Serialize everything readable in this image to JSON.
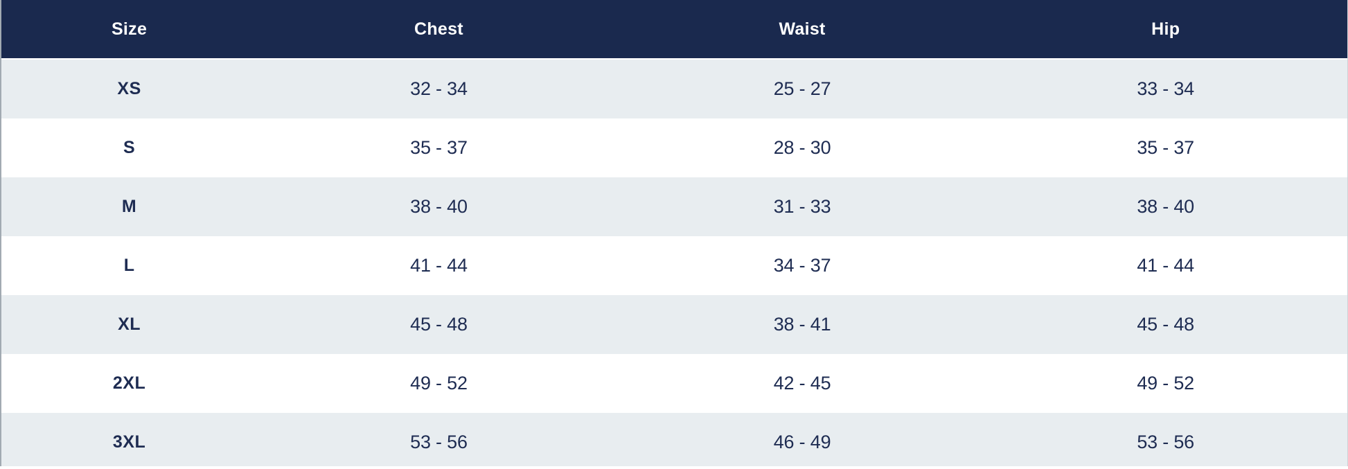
{
  "table": {
    "headers": [
      "Size",
      "Chest",
      "Waist",
      "Hip"
    ],
    "rows": [
      [
        "XS",
        "32 - 34",
        "25 - 27",
        "33 - 34"
      ],
      [
        "S",
        "35 - 37",
        "28 - 30",
        "35 - 37"
      ],
      [
        "M",
        "38 - 40",
        "31 - 33",
        "38 - 40"
      ],
      [
        "L",
        "41 - 44",
        "34 - 37",
        "41 - 44"
      ],
      [
        "XL",
        "45 - 48",
        "38 - 41",
        "45 - 48"
      ],
      [
        "2XL",
        "49 - 52",
        "42 - 45",
        "49 - 52"
      ],
      [
        "3XL",
        "53 - 56",
        "46 - 49",
        "53 - 56"
      ]
    ]
  },
  "colors": {
    "header_bg": "#1a294e",
    "header_text": "#ffffff",
    "body_text": "#1e2c52",
    "row_alt_bg": "#e8edf0",
    "row_bg": "#ffffff"
  }
}
